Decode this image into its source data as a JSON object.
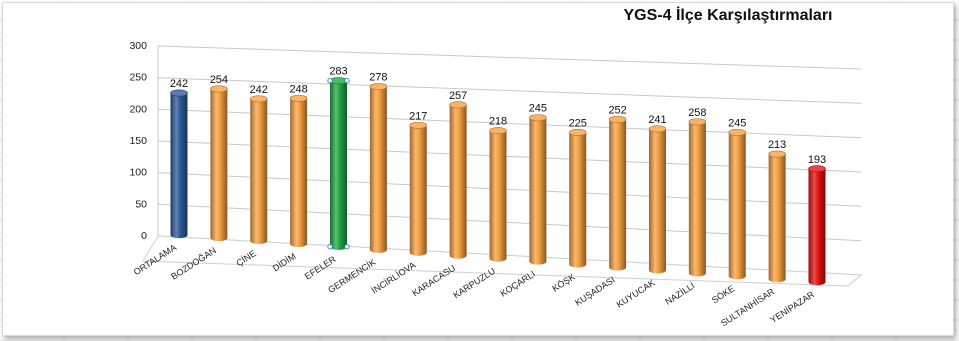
{
  "chart_data": {
    "type": "bar",
    "title": "YGS-4 İlçe Karşılaştırmaları",
    "xlabel": "",
    "ylabel": "",
    "ylim": [
      0,
      300
    ],
    "yticks": [
      0,
      50,
      100,
      150,
      200,
      250,
      300
    ],
    "grid": true,
    "legend": "none",
    "style": "3d-cylinder",
    "categories": [
      "ORTALAMA",
      "BOZDOĞAN",
      "ÇİNE",
      "DİDİM",
      "EFELER",
      "GERMENCİK",
      "İNCİRLİOVA",
      "KARACASU",
      "KARPUZLU",
      "KOÇARLI",
      "KÖŞK",
      "KUŞADASI",
      "KUYUCAK",
      "NAZİLLİ",
      "SÖKE",
      "SULTANHİSAR",
      "YENİPAZAR"
    ],
    "values": [
      242,
      254,
      242,
      248,
      283,
      278,
      217,
      257,
      218,
      245,
      225,
      252,
      241,
      258,
      245,
      213,
      193
    ],
    "bar_colors": [
      "#2e5c9a",
      "#f5a042",
      "#f5a042",
      "#f5a042",
      "#22a845",
      "#f5a042",
      "#f5a042",
      "#f5a042",
      "#f5a042",
      "#f5a042",
      "#f5a042",
      "#f5a042",
      "#f5a042",
      "#f5a042",
      "#f5a042",
      "#f5a042",
      "#e31414"
    ],
    "highlighted": "EFELER"
  }
}
